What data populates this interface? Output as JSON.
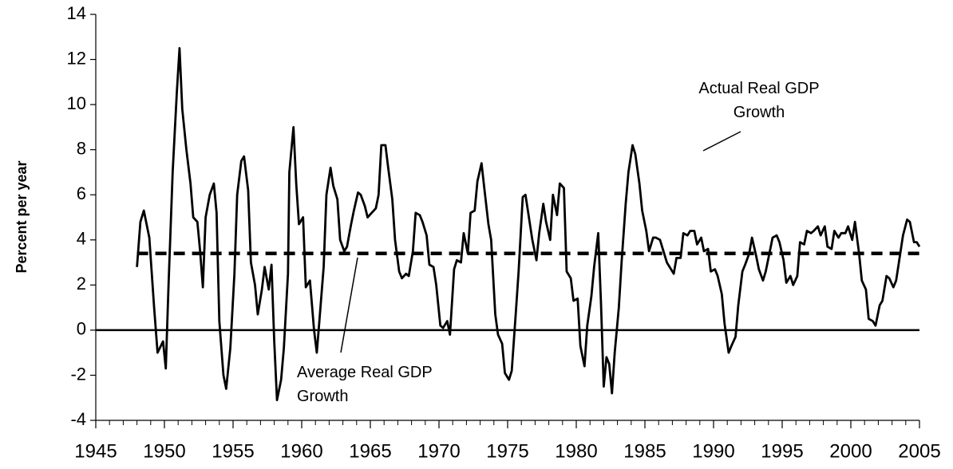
{
  "chart_data": {
    "type": "line",
    "ylabel": "Percent per year",
    "xlim": [
      1945,
      2005
    ],
    "ylim": [
      -4,
      14
    ],
    "xticks": [
      1945,
      1950,
      1955,
      1960,
      1965,
      1970,
      1975,
      1980,
      1985,
      1990,
      1995,
      2000,
      2005
    ],
    "yticks": [
      -4,
      -2,
      0,
      2,
      4,
      6,
      8,
      10,
      12,
      14
    ],
    "series": [
      {
        "name": "Actual Real GDP Growth",
        "color": "#000000",
        "style": "solid",
        "x": [
          1948.0,
          1948.25,
          1948.5,
          1948.9,
          1949.25,
          1949.5,
          1949.9,
          1950.1,
          1950.3,
          1950.6,
          1950.9,
          1951.1,
          1951.3,
          1951.6,
          1951.9,
          1952.1,
          1952.4,
          1952.6,
          1952.8,
          1953.0,
          1953.3,
          1953.6,
          1953.8,
          1954.0,
          1954.3,
          1954.5,
          1954.8,
          1955.1,
          1955.3,
          1955.6,
          1955.8,
          1956.1,
          1956.3,
          1956.6,
          1956.8,
          1957.1,
          1957.3,
          1957.6,
          1957.8,
          1958.0,
          1958.2,
          1958.5,
          1958.7,
          1959.0,
          1959.1,
          1959.4,
          1959.6,
          1959.8,
          1960.1,
          1960.3,
          1960.6,
          1960.9,
          1961.1,
          1961.3,
          1961.6,
          1961.8,
          1962.1,
          1962.3,
          1962.6,
          1962.8,
          1963.1,
          1963.3,
          1963.6,
          1963.8,
          1964.1,
          1964.3,
          1964.6,
          1964.8,
          1965.1,
          1965.4,
          1965.6,
          1965.8,
          1966.1,
          1966.3,
          1966.6,
          1966.8,
          1967.1,
          1967.3,
          1967.6,
          1967.8,
          1968.1,
          1968.3,
          1968.6,
          1968.8,
          1969.1,
          1969.3,
          1969.6,
          1969.8,
          1970.1,
          1970.3,
          1970.6,
          1970.8,
          1971.1,
          1971.3,
          1971.6,
          1971.8,
          1972.1,
          1972.3,
          1972.6,
          1972.8,
          1973.1,
          1973.3,
          1973.6,
          1973.8,
          1974.1,
          1974.3,
          1974.6,
          1974.8,
          1975.1,
          1975.3,
          1975.6,
          1975.8,
          1976.1,
          1976.3,
          1976.6,
          1976.8,
          1977.1,
          1977.3,
          1977.6,
          1977.8,
          1978.1,
          1978.3,
          1978.6,
          1978.8,
          1979.1,
          1979.3,
          1979.6,
          1979.8,
          1980.1,
          1980.3,
          1980.6,
          1980.8,
          1981.1,
          1981.3,
          1981.6,
          1981.8,
          1982.0,
          1982.2,
          1982.4,
          1982.6,
          1982.8,
          1983.1,
          1983.3,
          1983.6,
          1983.8,
          1984.1,
          1984.3,
          1984.6,
          1984.8,
          1985.1,
          1985.3,
          1985.6,
          1985.8,
          1986.1,
          1986.3,
          1986.6,
          1986.8,
          1987.1,
          1987.3,
          1987.6,
          1987.8,
          1988.1,
          1988.3,
          1988.6,
          1988.8,
          1989.1,
          1989.3,
          1989.6,
          1989.8,
          1990.1,
          1990.3,
          1990.6,
          1990.8,
          1991.1,
          1991.3,
          1991.6,
          1991.8,
          1992.1,
          1992.3,
          1992.6,
          1992.8,
          1993.1,
          1993.3,
          1993.6,
          1993.8,
          1994.1,
          1994.3,
          1994.6,
          1994.8,
          1995.1,
          1995.3,
          1995.6,
          1995.8,
          1996.1,
          1996.3,
          1996.6,
          1996.8,
          1997.1,
          1997.3,
          1997.6,
          1997.8,
          1998.1,
          1998.3,
          1998.6,
          1998.8,
          1999.1,
          1999.3,
          1999.6,
          1999.8,
          2000.1,
          2000.3,
          2000.6,
          2000.8,
          2001.1,
          2001.3,
          2001.6,
          2001.8,
          2002.1,
          2002.3,
          2002.6,
          2002.8,
          2003.1,
          2003.3,
          2003.6,
          2003.8,
          2004.1,
          2004.3,
          2004.6,
          2004.8,
          2005.0
        ],
        "values": [
          2.8,
          4.8,
          5.3,
          4.1,
          1.0,
          -1.0,
          -0.5,
          -1.7,
          2.0,
          7.0,
          10.5,
          12.5,
          9.8,
          8.0,
          6.5,
          5.0,
          4.8,
          3.5,
          1.9,
          5.0,
          6.0,
          6.5,
          5.2,
          0.4,
          -2.0,
          -2.6,
          -0.8,
          2.5,
          6.0,
          7.5,
          7.7,
          6.2,
          3.0,
          2.0,
          0.7,
          1.8,
          2.8,
          1.8,
          2.9,
          -0.5,
          -3.1,
          -2.2,
          -0.8,
          2.5,
          7.0,
          9.0,
          6.5,
          4.7,
          5.0,
          1.9,
          2.2,
          0.0,
          -1.0,
          0.5,
          2.8,
          6.0,
          7.2,
          6.4,
          5.8,
          4.0,
          3.5,
          3.7,
          4.7,
          5.3,
          6.1,
          6.0,
          5.5,
          5.0,
          5.2,
          5.4,
          6.0,
          8.2,
          8.2,
          7.2,
          5.8,
          4.0,
          2.6,
          2.3,
          2.5,
          2.4,
          3.5,
          5.2,
          5.1,
          4.8,
          4.2,
          2.9,
          2.8,
          2.0,
          0.2,
          0.1,
          0.4,
          -0.2,
          2.7,
          3.1,
          3.0,
          4.3,
          3.4,
          5.2,
          5.3,
          6.6,
          7.4,
          6.3,
          4.7,
          4.0,
          0.7,
          -0.2,
          -0.6,
          -1.9,
          -2.2,
          -1.8,
          0.8,
          2.6,
          5.9,
          6.0,
          4.8,
          4.0,
          3.1,
          4.3,
          5.6,
          4.8,
          4.0,
          6.0,
          5.1,
          6.5,
          6.3,
          2.6,
          2.3,
          1.3,
          1.4,
          -0.7,
          -1.6,
          0.2,
          1.5,
          2.8,
          4.3,
          1.2,
          -2.5,
          -1.2,
          -1.5,
          -2.8,
          -1.0,
          1.0,
          3.0,
          5.6,
          7.0,
          8.2,
          7.8,
          6.5,
          5.3,
          4.4,
          3.5,
          4.1,
          4.1,
          4.0,
          3.6,
          3.0,
          2.8,
          2.5,
          3.2,
          3.2,
          4.3,
          4.2,
          4.4,
          4.4,
          3.8,
          4.1,
          3.5,
          3.6,
          2.6,
          2.7,
          2.4,
          1.6,
          0.3,
          -1.0,
          -0.7,
          -0.3,
          1.1,
          2.6,
          2.9,
          3.4,
          4.1,
          3.3,
          2.7,
          2.2,
          2.6,
          3.5,
          4.1,
          4.2,
          3.9,
          3.1,
          2.1,
          2.4,
          2.0,
          2.4,
          3.9,
          3.8,
          4.4,
          4.3,
          4.4,
          4.6,
          4.2,
          4.6,
          3.7,
          3.6,
          4.4,
          4.1,
          4.3,
          4.3,
          4.6,
          4.0,
          4.8,
          3.4,
          2.2,
          1.8,
          0.5,
          0.4,
          0.2,
          1.1,
          1.3,
          2.4,
          2.3,
          1.9,
          2.2,
          3.4,
          4.2,
          4.9,
          4.8,
          3.9,
          3.9,
          3.7
        ]
      },
      {
        "name": "Average Real GDP Growth",
        "color": "#000000",
        "style": "dashed",
        "x": [
          1948.0,
          2005.0
        ],
        "values": [
          3.4,
          3.4
        ]
      }
    ]
  }
}
